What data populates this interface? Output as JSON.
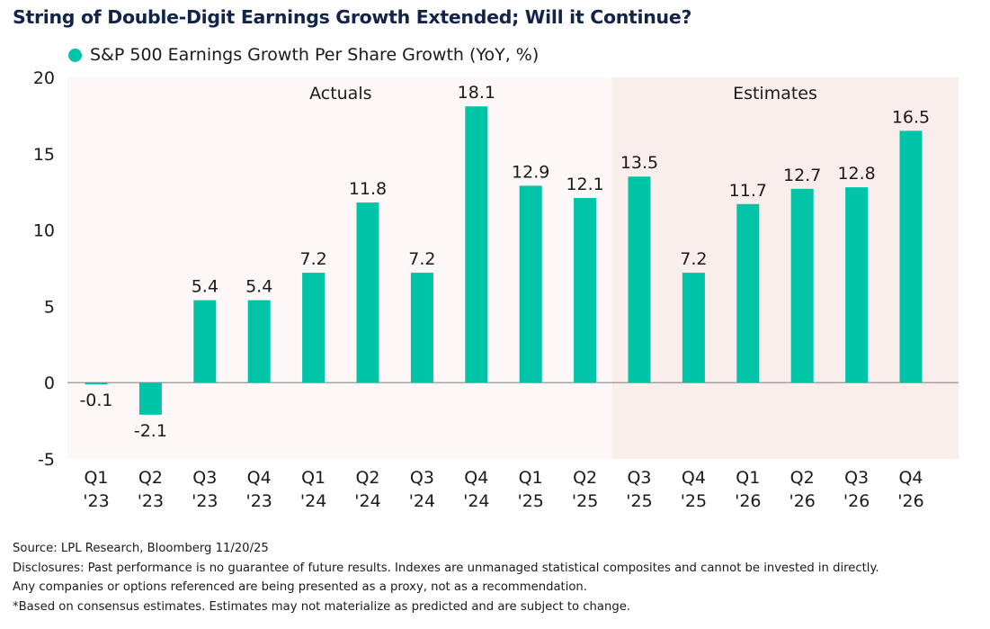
{
  "title": "String of Double-Digit Earnings Growth Extended; Will it Continue?",
  "legend": {
    "label": "S&P 500 Earnings Growth Per Share Growth (YoY, %)",
    "color": "#00c4a7"
  },
  "colors": {
    "bar": "#00c4a7",
    "actuals_bg": "#fdf8f7",
    "estimates_bg": "#f9eeeb",
    "zero_line": "#888888",
    "title": "#12244a"
  },
  "chart_data": {
    "type": "bar",
    "title": "String of Double-Digit Earnings Growth Extended; Will it Continue?",
    "xlabel": "",
    "ylabel": "",
    "ylim": [
      -5,
      20
    ],
    "yticks": [
      20,
      15,
      10,
      5,
      0,
      -5
    ],
    "grid": false,
    "legend_position": "top-left",
    "categories": [
      {
        "q": "Q1",
        "y": "'23"
      },
      {
        "q": "Q2",
        "y": "'23"
      },
      {
        "q": "Q3",
        "y": "'23"
      },
      {
        "q": "Q4",
        "y": "'23"
      },
      {
        "q": "Q1",
        "y": "'24"
      },
      {
        "q": "Q2",
        "y": "'24"
      },
      {
        "q": "Q3",
        "y": "'24"
      },
      {
        "q": "Q4",
        "y": "'24"
      },
      {
        "q": "Q1",
        "y": "'25"
      },
      {
        "q": "Q2",
        "y": "'25"
      },
      {
        "q": "Q3",
        "y": "'25"
      },
      {
        "q": "Q4",
        "y": "'25"
      },
      {
        "q": "Q1",
        "y": "'26"
      },
      {
        "q": "Q2",
        "y": "'26"
      },
      {
        "q": "Q3",
        "y": "'26"
      },
      {
        "q": "Q4",
        "y": "'26"
      }
    ],
    "series": [
      {
        "name": "S&P 500 Earnings Growth Per Share Growth (YoY, %)",
        "values": [
          -0.1,
          -2.1,
          5.4,
          5.4,
          7.2,
          11.8,
          7.2,
          18.1,
          12.9,
          12.1,
          13.5,
          7.2,
          11.7,
          12.7,
          12.8,
          16.5
        ],
        "labels": [
          "-0.1",
          "-2.1",
          "5.4",
          "5.4",
          "7.2",
          "11.8",
          "7.2",
          "18.1",
          "12.9",
          "12.1",
          "13.5",
          "7.2",
          "11.7",
          "12.7",
          "12.8",
          "16.5"
        ]
      }
    ],
    "regions": [
      {
        "label": "Actuals",
        "start_index": 0,
        "end_index": 9
      },
      {
        "label": "Estimates",
        "start_index": 10,
        "end_index": 15
      }
    ]
  },
  "footnotes": [
    "Source: LPL Research, Bloomberg 11/20/25",
    "Disclosures: Past performance is no guarantee of future results. Indexes are unmanaged statistical composites and cannot be invested in directly.",
    "Any companies or options referenced are being presented as a proxy, not as a recommendation.",
    "*Based on consensus estimates. Estimates may not materialize as predicted and are subject to change."
  ]
}
